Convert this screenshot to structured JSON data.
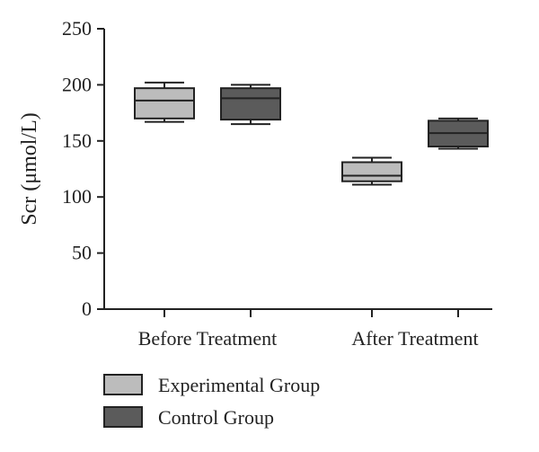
{
  "chart_data": {
    "type": "boxplot",
    "title": "",
    "xlabel": "",
    "ylabel": "Scr (μmol/L)",
    "ylim": [
      0,
      250
    ],
    "yticks": [
      0,
      50,
      100,
      150,
      200,
      250
    ],
    "categories": [
      "Before Treatment",
      "After Treatment"
    ],
    "series": [
      {
        "name": "Experimental Group",
        "color": "#bcbcbc",
        "boxes": [
          {
            "min": 167,
            "q1": 170,
            "median": 186,
            "q3": 197,
            "max": 202
          },
          {
            "min": 111,
            "q1": 114,
            "median": 119,
            "q3": 131,
            "max": 135
          }
        ]
      },
      {
        "name": "Control Group",
        "color": "#5b5b5b",
        "boxes": [
          {
            "min": 165,
            "q1": 169,
            "median": 188,
            "q3": 197,
            "max": 200
          },
          {
            "min": 143,
            "q1": 145,
            "median": 157,
            "q3": 168,
            "max": 170
          }
        ]
      }
    ],
    "legend": "bottom-left",
    "grid": false
  }
}
